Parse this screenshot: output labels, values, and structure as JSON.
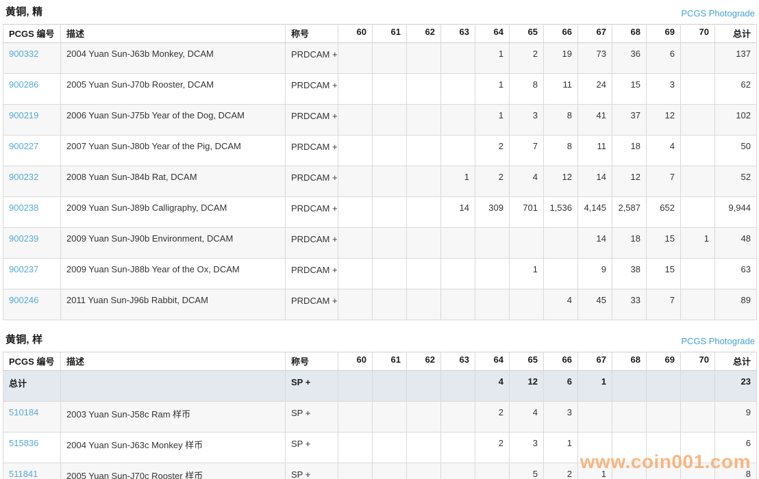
{
  "photograde_label": "PCGS Photograde",
  "columns": {
    "pcgs_no": "PCGS 编号",
    "description": "描述",
    "designation": "称号",
    "grades": [
      "60",
      "61",
      "62",
      "63",
      "64",
      "65",
      "66",
      "67",
      "68",
      "69",
      "70"
    ],
    "total": "总计"
  },
  "sections": [
    {
      "title": "黄铜, 精",
      "rows": [
        {
          "pcgs_no": "900332",
          "is_link": true,
          "is_total": false,
          "description": "2004 Yuan Sun-J63b Monkey, DCAM",
          "designation": "PRDCAM\n+",
          "grades": [
            "",
            "",
            "",
            "",
            "1",
            "2",
            "19",
            "73",
            "36",
            "6",
            ""
          ],
          "total": "137"
        },
        {
          "pcgs_no": "900286",
          "is_link": true,
          "is_total": false,
          "description": "2005 Yuan Sun-J70b Rooster, DCAM",
          "designation": "PRDCAM\n+",
          "grades": [
            "",
            "",
            "",
            "",
            "1",
            "8",
            "11",
            "24",
            "15",
            "3",
            ""
          ],
          "total": "62"
        },
        {
          "pcgs_no": "900219",
          "is_link": true,
          "is_total": false,
          "description": "2006 Yuan Sun-J75b Year of the Dog, DCAM",
          "designation": "PRDCAM\n+",
          "grades": [
            "",
            "",
            "",
            "",
            "1",
            "3",
            "8",
            "41",
            "37",
            "12",
            ""
          ],
          "total": "102"
        },
        {
          "pcgs_no": "900227",
          "is_link": true,
          "is_total": false,
          "description": "2007 Yuan Sun-J80b Year of the Pig, DCAM",
          "designation": "PRDCAM\n+",
          "grades": [
            "",
            "",
            "",
            "",
            "2",
            "7",
            "8",
            "11",
            "18",
            "4",
            ""
          ],
          "total": "50"
        },
        {
          "pcgs_no": "900232",
          "is_link": true,
          "is_total": false,
          "description": "2008 Yuan Sun-J84b Rat, DCAM",
          "designation": "PRDCAM\n+",
          "grades": [
            "",
            "",
            "",
            "1",
            "2",
            "4",
            "12",
            "14",
            "12",
            "7",
            ""
          ],
          "total": "52"
        },
        {
          "pcgs_no": "900238",
          "is_link": true,
          "is_total": false,
          "description": "2009 Yuan Sun-J89b Calligraphy, DCAM",
          "designation": "PRDCAM\n+",
          "grades": [
            "",
            "",
            "",
            "14",
            "309",
            "701",
            "1,536",
            "4,145",
            "2,587",
            "652",
            ""
          ],
          "total": "9,944"
        },
        {
          "pcgs_no": "900239",
          "is_link": true,
          "is_total": false,
          "description": "2009 Yuan Sun-J90b Environment, DCAM",
          "designation": "PRDCAM\n+",
          "grades": [
            "",
            "",
            "",
            "",
            "",
            "",
            "",
            "14",
            "18",
            "15",
            "1"
          ],
          "total": "48"
        },
        {
          "pcgs_no": "900237",
          "is_link": true,
          "is_total": false,
          "description": "2009 Yuan Sun-J88b Year of the Ox, DCAM",
          "designation": "PRDCAM\n+",
          "grades": [
            "",
            "",
            "",
            "",
            "",
            "1",
            "",
            "9",
            "38",
            "15",
            ""
          ],
          "total": "63"
        },
        {
          "pcgs_no": "900246",
          "is_link": true,
          "is_total": false,
          "description": "2011 Yuan Sun-J96b Rabbit, DCAM",
          "designation": "PRDCAM\n+",
          "grades": [
            "",
            "",
            "",
            "",
            "",
            "",
            "4",
            "45",
            "33",
            "7",
            ""
          ],
          "total": "89"
        }
      ]
    },
    {
      "title": "黄铜, 样",
      "rows": [
        {
          "pcgs_no": "总计",
          "is_link": false,
          "is_total": true,
          "description": "",
          "designation": "SP\n+",
          "grades": [
            "",
            "",
            "",
            "",
            "4",
            "12",
            "6",
            "1",
            "",
            "",
            ""
          ],
          "total": "23"
        },
        {
          "pcgs_no": "510184",
          "is_link": true,
          "is_total": false,
          "description": "2003 Yuan Sun-J58c Ram 样币",
          "designation": "SP\n+",
          "grades": [
            "",
            "",
            "",
            "",
            "2",
            "4",
            "3",
            "",
            "",
            "",
            ""
          ],
          "total": "9"
        },
        {
          "pcgs_no": "515836",
          "is_link": true,
          "is_total": false,
          "description": "2004 Yuan Sun-J63c Monkey 样币",
          "designation": "SP\n+",
          "grades": [
            "",
            "",
            "",
            "",
            "2",
            "3",
            "1",
            "",
            "",
            "",
            ""
          ],
          "total": "6"
        },
        {
          "pcgs_no": "511841",
          "is_link": true,
          "is_total": false,
          "description": "2005 Yuan Sun-J70c Rooster 样币",
          "designation": "SP\n+",
          "grades": [
            "",
            "",
            "",
            "",
            "",
            "5",
            "2",
            "1",
            "",
            "",
            ""
          ],
          "total": "8"
        }
      ]
    }
  ],
  "watermark": "www.coin001.com"
}
